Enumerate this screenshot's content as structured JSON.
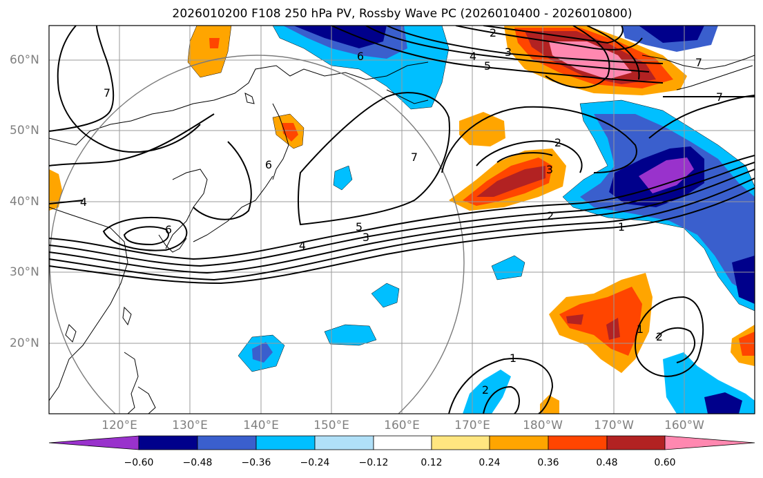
{
  "title": "2026010200 F108 250 hPa PV, Rossby Wave PC (2026010400 - 2026010800)",
  "lat_labels": [
    "60°N",
    "50°N",
    "40°N",
    "30°N",
    "20°N"
  ],
  "lon_labels": [
    "120°E",
    "130°E",
    "140°E",
    "150°E",
    "160°E",
    "170°E",
    "180°W",
    "170°W",
    "160°W"
  ],
  "colorbar": {
    "ticks": [
      "−0.60",
      "−0.48",
      "−0.36",
      "−0.24",
      "−0.12",
      "0.12",
      "0.24",
      "0.36",
      "0.48",
      "0.60"
    ],
    "colors": [
      "#9932cc",
      "#00008b",
      "#3a5fcd",
      "#00bfff",
      "#b0e0f8",
      "#ffffff",
      "#ffe680",
      "#ffa500",
      "#ff4500",
      "#b22222",
      "#ff88b0"
    ]
  },
  "contour_labels": [
    "2",
    "3",
    "4",
    "5",
    "6",
    "7",
    "7",
    "7",
    "7",
    "6",
    "4",
    "4",
    "5",
    "3",
    "2",
    "1",
    "3",
    "2",
    "1",
    "1",
    "2",
    "2",
    "6"
  ]
}
